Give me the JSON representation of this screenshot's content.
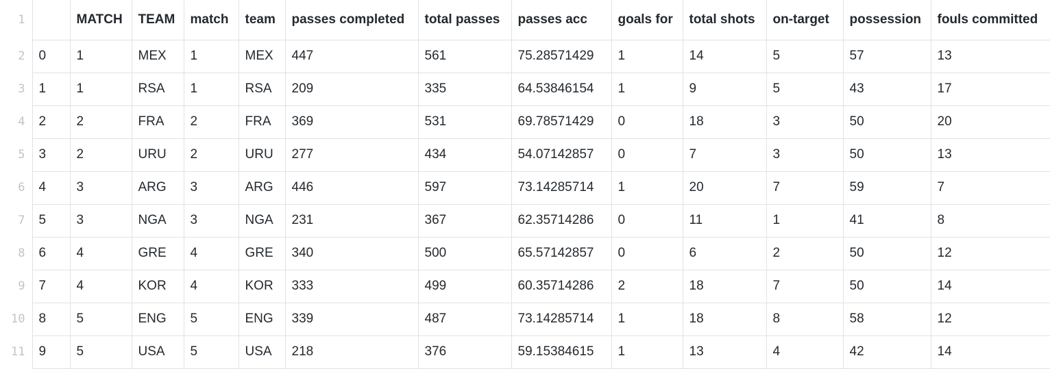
{
  "line_numbers": [
    "1",
    "2",
    "3",
    "4",
    "5",
    "6",
    "7",
    "8",
    "9",
    "10",
    "11"
  ],
  "columns": [
    "",
    "MATCH",
    "TEAM",
    "match",
    "team",
    "passes completed",
    "total passes",
    "passes acc",
    "goals for",
    "total shots",
    "on-target",
    "possession",
    "fouls committed"
  ],
  "rows": [
    [
      "0",
      "1",
      "MEX",
      "1",
      "MEX",
      "447",
      "561",
      "75.28571429",
      "1",
      "14",
      "5",
      "57",
      "13"
    ],
    [
      "1",
      "1",
      "RSA",
      "1",
      "RSA",
      "209",
      "335",
      "64.53846154",
      "1",
      "9",
      "5",
      "43",
      "17"
    ],
    [
      "2",
      "2",
      "FRA",
      "2",
      "FRA",
      "369",
      "531",
      "69.78571429",
      "0",
      "18",
      "3",
      "50",
      "20"
    ],
    [
      "3",
      "2",
      "URU",
      "2",
      "URU",
      "277",
      "434",
      "54.07142857",
      "0",
      "7",
      "3",
      "50",
      "13"
    ],
    [
      "4",
      "3",
      "ARG",
      "3",
      "ARG",
      "446",
      "597",
      "73.14285714",
      "1",
      "20",
      "7",
      "59",
      "7"
    ],
    [
      "5",
      "3",
      "NGA",
      "3",
      "NGA",
      "231",
      "367",
      "62.35714286",
      "0",
      "11",
      "1",
      "41",
      "8"
    ],
    [
      "6",
      "4",
      "GRE",
      "4",
      "GRE",
      "340",
      "500",
      "65.57142857",
      "0",
      "6",
      "2",
      "50",
      "12"
    ],
    [
      "7",
      "4",
      "KOR",
      "4",
      "KOR",
      "333",
      "499",
      "60.35714286",
      "2",
      "18",
      "7",
      "50",
      "14"
    ],
    [
      "8",
      "5",
      "ENG",
      "5",
      "ENG",
      "339",
      "487",
      "73.14285714",
      "1",
      "18",
      "8",
      "58",
      "12"
    ],
    [
      "9",
      "5",
      "USA",
      "5",
      "USA",
      "218",
      "376",
      "59.15384615",
      "1",
      "13",
      "4",
      "42",
      "14"
    ]
  ]
}
